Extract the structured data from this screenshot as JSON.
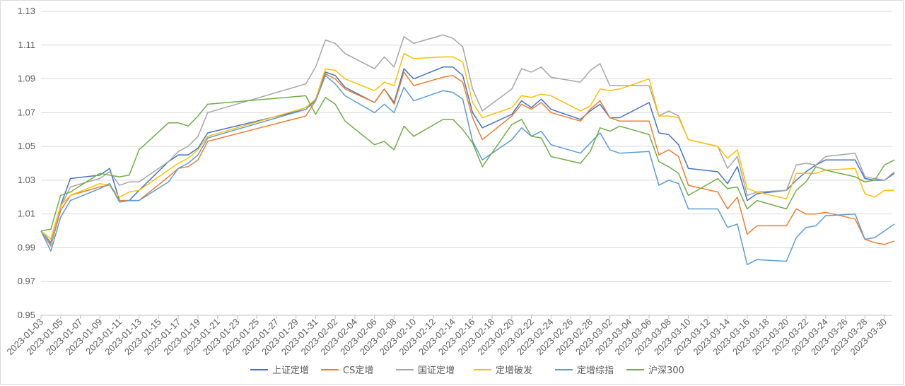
{
  "chart_data": {
    "type": "line",
    "title": "",
    "xlabel": "",
    "ylabel": "",
    "ylim": [
      0.95,
      1.13
    ],
    "yticks": [
      "0.95",
      "0.97",
      "0.99",
      "1.01",
      "1.03",
      "1.05",
      "1.07",
      "1.09",
      "1.11",
      "1.13"
    ],
    "grid": "horizontal",
    "legend_position": "bottom",
    "x": [
      "2023-01-03",
      "2023-01-04",
      "2023-01-05",
      "2023-01-06",
      "2023-01-09",
      "2023-01-10",
      "2023-01-11",
      "2023-01-12",
      "2023-01-13",
      "2023-01-16",
      "2023-01-17",
      "2023-01-18",
      "2023-01-19",
      "2023-01-20",
      "2023-01-30",
      "2023-01-31",
      "2023-02-01",
      "2023-02-02",
      "2023-02-03",
      "2023-02-06",
      "2023-02-07",
      "2023-02-08",
      "2023-02-09",
      "2023-02-10",
      "2023-02-13",
      "2023-02-14",
      "2023-02-15",
      "2023-02-16",
      "2023-02-17",
      "2023-02-20",
      "2023-02-21",
      "2023-02-22",
      "2023-02-23",
      "2023-02-24",
      "2023-02-27",
      "2023-02-28",
      "2023-03-01",
      "2023-03-02",
      "2023-03-03",
      "2023-03-06",
      "2023-03-07",
      "2023-03-08",
      "2023-03-09",
      "2023-03-10",
      "2023-03-13",
      "2023-03-14",
      "2023-03-15",
      "2023-03-16",
      "2023-03-17",
      "2023-03-20",
      "2023-03-21",
      "2023-03-22",
      "2023-03-23",
      "2023-03-24",
      "2023-03-27",
      "2023-03-28",
      "2023-03-29",
      "2023-03-30",
      "2023-03-31"
    ],
    "xticks": [
      "2023-01-03",
      "2023-01-05",
      "2023-01-07",
      "2023-01-09",
      "2023-01-11",
      "2023-01-13",
      "2023-01-15",
      "2023-01-17",
      "2023-01-19",
      "2023-01-21",
      "2023-01-23",
      "2023-01-25",
      "2023-01-27",
      "2023-01-29",
      "2023-01-31",
      "2023-02-02",
      "2023-02-04",
      "2023-02-06",
      "2023-02-08",
      "2023-02-10",
      "2023-02-12",
      "2023-02-14",
      "2023-02-16",
      "2023-02-18",
      "2023-02-20",
      "2023-02-22",
      "2023-02-24",
      "2023-02-26",
      "2023-02-28",
      "2023-03-02",
      "2023-03-04",
      "2023-03-06",
      "2023-03-08",
      "2023-03-10",
      "2023-03-12",
      "2023-03-14",
      "2023-03-16",
      "2023-03-18",
      "2023-03-20",
      "2023-03-22",
      "2023-03-24",
      "2023-03-26",
      "2023-03-28",
      "2023-03-30"
    ],
    "series": [
      {
        "name": "上证定增",
        "color": "#4472C4",
        "values": [
          1.0,
          0.993,
          1.015,
          1.031,
          1.033,
          1.037,
          1.018,
          1.018,
          1.024,
          1.041,
          1.045,
          1.045,
          1.049,
          1.058,
          1.072,
          1.078,
          1.094,
          1.092,
          1.085,
          1.076,
          1.084,
          1.076,
          1.096,
          1.09,
          1.097,
          1.097,
          1.092,
          1.07,
          1.061,
          1.069,
          1.077,
          1.073,
          1.078,
          1.072,
          1.066,
          1.071,
          1.075,
          1.067,
          1.067,
          1.076,
          1.058,
          1.057,
          1.051,
          1.037,
          1.035,
          1.028,
          1.038,
          1.018,
          1.022,
          1.024,
          1.03,
          1.035,
          1.039,
          1.042,
          1.042,
          1.031,
          1.03,
          1.03,
          1.034
        ]
      },
      {
        "name": "CS定增",
        "color": "#ED7D31",
        "values": [
          1.0,
          0.991,
          1.012,
          1.021,
          1.026,
          1.027,
          1.018,
          1.018,
          1.018,
          1.032,
          1.037,
          1.038,
          1.042,
          1.053,
          1.068,
          1.077,
          1.093,
          1.09,
          1.084,
          1.076,
          1.084,
          1.075,
          1.094,
          1.086,
          1.091,
          1.092,
          1.088,
          1.067,
          1.054,
          1.068,
          1.075,
          1.072,
          1.076,
          1.07,
          1.065,
          1.072,
          1.077,
          1.067,
          1.065,
          1.065,
          1.045,
          1.048,
          1.044,
          1.027,
          1.023,
          1.013,
          1.02,
          0.998,
          1.003,
          1.003,
          1.013,
          1.01,
          1.01,
          1.011,
          1.007,
          0.995,
          0.993,
          0.992,
          0.994
        ]
      },
      {
        "name": "国证定增",
        "color": "#A5A5A5",
        "values": [
          1.0,
          0.992,
          1.014,
          1.026,
          1.031,
          1.035,
          1.027,
          1.029,
          1.029,
          1.041,
          1.047,
          1.05,
          1.056,
          1.07,
          1.087,
          1.097,
          1.113,
          1.111,
          1.105,
          1.096,
          1.103,
          1.097,
          1.115,
          1.111,
          1.116,
          1.114,
          1.109,
          1.084,
          1.071,
          1.084,
          1.096,
          1.094,
          1.097,
          1.091,
          1.088,
          1.095,
          1.099,
          1.086,
          1.086,
          1.086,
          1.068,
          1.071,
          1.068,
          1.054,
          1.05,
          1.037,
          1.044,
          1.021,
          1.023,
          1.024,
          1.039,
          1.04,
          1.039,
          1.044,
          1.046,
          1.032,
          1.031,
          1.03,
          1.035
        ]
      },
      {
        "name": "定增破发",
        "color": "#FFC000",
        "values": [
          1.0,
          0.995,
          1.015,
          1.021,
          1.028,
          1.027,
          1.02,
          1.023,
          1.024,
          1.036,
          1.04,
          1.043,
          1.048,
          1.056,
          1.073,
          1.078,
          1.096,
          1.095,
          1.09,
          1.083,
          1.088,
          1.086,
          1.105,
          1.102,
          1.103,
          1.103,
          1.1,
          1.076,
          1.067,
          1.073,
          1.08,
          1.079,
          1.081,
          1.08,
          1.071,
          1.074,
          1.084,
          1.083,
          1.084,
          1.09,
          1.068,
          1.068,
          1.067,
          1.054,
          1.05,
          1.043,
          1.048,
          1.025,
          1.023,
          1.019,
          1.034,
          1.034,
          1.034,
          1.036,
          1.037,
          1.022,
          1.02,
          1.024,
          1.024
        ]
      },
      {
        "name": "定增综指",
        "color": "#5B9BD5",
        "values": [
          1.0,
          0.988,
          1.008,
          1.018,
          1.025,
          1.028,
          1.017,
          1.018,
          1.018,
          1.029,
          1.037,
          1.04,
          1.045,
          1.055,
          1.072,
          1.077,
          1.092,
          1.087,
          1.08,
          1.07,
          1.075,
          1.07,
          1.085,
          1.077,
          1.083,
          1.082,
          1.078,
          1.053,
          1.042,
          1.054,
          1.061,
          1.056,
          1.059,
          1.051,
          1.046,
          1.052,
          1.058,
          1.048,
          1.046,
          1.047,
          1.027,
          1.03,
          1.028,
          1.013,
          1.013,
          1.002,
          1.004,
          0.98,
          0.983,
          0.982,
          0.996,
          1.002,
          1.003,
          1.009,
          1.01,
          0.995,
          0.996,
          1.0,
          1.004
        ]
      },
      {
        "name": "沪深300",
        "color": "#70AD47",
        "values": [
          1.0,
          1.001,
          1.021,
          1.023,
          1.034,
          1.033,
          1.032,
          1.033,
          1.048,
          1.064,
          1.064,
          1.062,
          1.068,
          1.075,
          1.08,
          1.069,
          1.079,
          1.075,
          1.065,
          1.051,
          1.053,
          1.048,
          1.062,
          1.056,
          1.066,
          1.066,
          1.06,
          1.052,
          1.038,
          1.063,
          1.066,
          1.056,
          1.055,
          1.044,
          1.04,
          1.047,
          1.061,
          1.059,
          1.062,
          1.057,
          1.041,
          1.038,
          1.034,
          1.021,
          1.031,
          1.025,
          1.026,
          1.013,
          1.018,
          1.013,
          1.024,
          1.029,
          1.038,
          1.036,
          1.032,
          1.029,
          1.03,
          1.039,
          1.042
        ]
      }
    ]
  }
}
